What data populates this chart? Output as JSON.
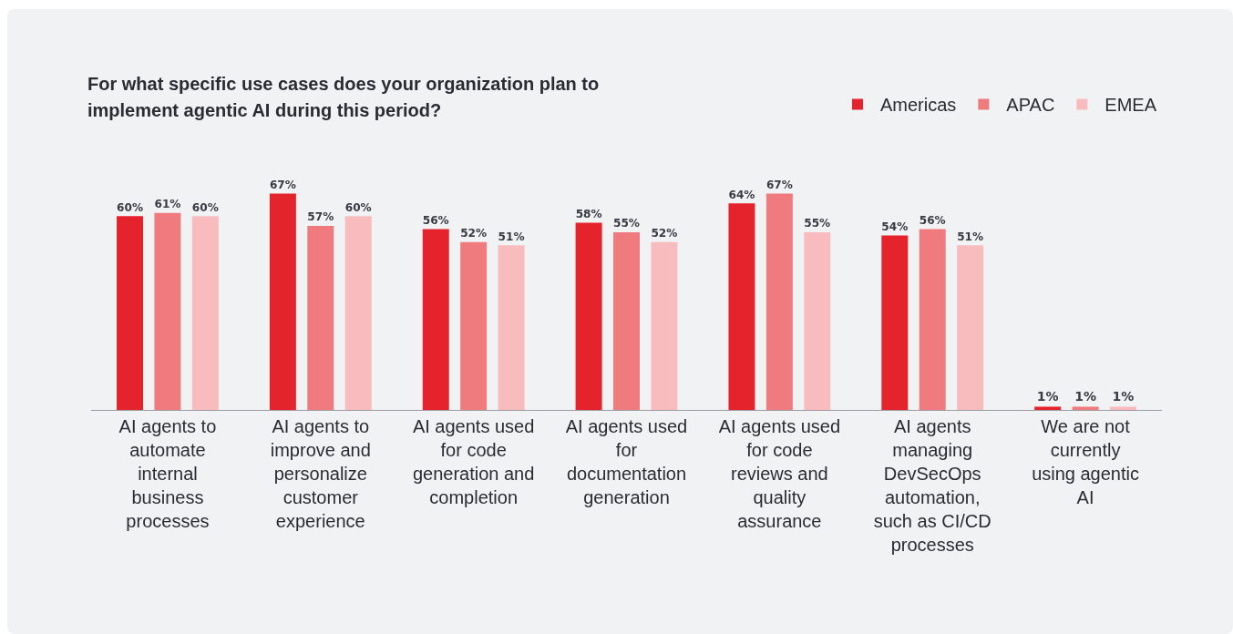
{
  "chart_data": {
    "type": "bar",
    "title": "For what specific use cases does your organization plan to implement agentic AI during this period?",
    "categories": [
      "AI agents to automate internal business processes",
      "AI agents to improve and personalize customer experience",
      "AI agents used for code generation and completion",
      "AI agents used for documentation generation",
      "AI agents used for code reviews and quality assurance",
      "AI agents managing DevSecOps automation, such as CI/CD processes",
      "We are not currently using agentic AI"
    ],
    "series": [
      {
        "name": "Americas",
        "color": "#e4232c",
        "values": [
          60,
          67,
          56,
          58,
          64,
          54,
          1
        ],
        "value_labels": [
          "60%",
          "67%",
          "56%",
          "58%",
          "64%",
          "54%",
          "1%"
        ]
      },
      {
        "name": "APAC",
        "color": "#f07b7f",
        "values": [
          61,
          57,
          52,
          55,
          67,
          56,
          1
        ],
        "value_labels": [
          "61%",
          "57%",
          "52%",
          "55%",
          "67%",
          "56%",
          "1%"
        ]
      },
      {
        "name": "EMEA",
        "color": "#f8bcbf",
        "values": [
          60,
          60,
          51,
          52,
          55,
          51,
          1
        ],
        "value_labels": [
          "60%",
          "60%",
          "51%",
          "52%",
          "55%",
          "51%",
          "1%"
        ]
      }
    ],
    "legend": "top right",
    "grid": false
  }
}
